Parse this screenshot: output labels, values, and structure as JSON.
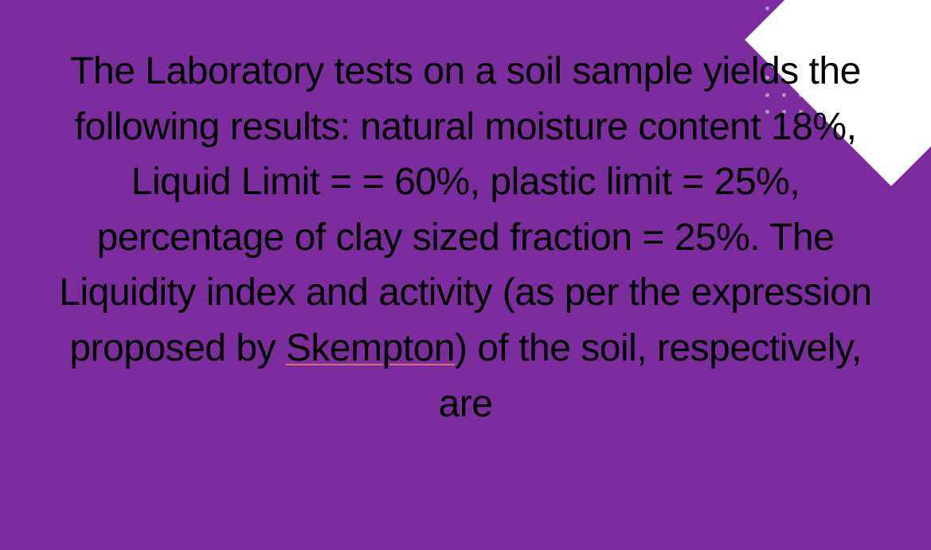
{
  "background_color": "#7b2d9e",
  "text_color": "#000000",
  "dot_color": "#b98fd0",
  "corner_color": "#ffffff",
  "underline_color": "#d4756b",
  "font_size": 48,
  "question": {
    "part1": "The Laboratory tests on a soil sample yields the following results: natural moisture content 18%, Liquid Limit = = 60%, plastic limit = 25%, percentage of clay sized fraction = 25%. The Liquidity index and activity (as per the expression proposed by ",
    "underlined": "Skempton",
    "part2": ") of the soil, respectively, are"
  },
  "dot_grid": {
    "rows": 7,
    "cols": 10
  }
}
